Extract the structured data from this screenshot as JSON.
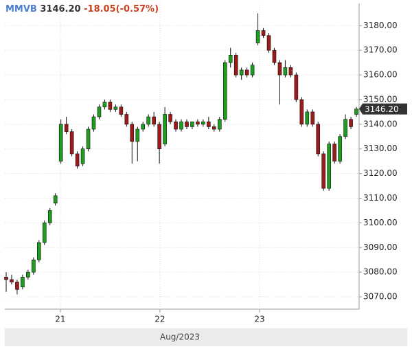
{
  "chart_data": {
    "type": "candlestick",
    "symbol": "MMVB",
    "price": "3146.20",
    "change": "-18.05(-0.57%)",
    "xlabel": "Aug/2023",
    "up_color": "#1e9e1e",
    "down_color": "#9e1a1a",
    "x": [
      0,
      1,
      2,
      3,
      4,
      5,
      6,
      7,
      8,
      9,
      10,
      11,
      12,
      13,
      14,
      15,
      16,
      17,
      18,
      19,
      20,
      21,
      22,
      23,
      24,
      25,
      26,
      27,
      28,
      29,
      30,
      31,
      32,
      33,
      34,
      35,
      36,
      37,
      38,
      39,
      40,
      41,
      42,
      43,
      44,
      45,
      46,
      47,
      48,
      49,
      50,
      51,
      52,
      53,
      54,
      55,
      56,
      57,
      58,
      59,
      60,
      61,
      62,
      63,
      64
    ],
    "open": [
      3078,
      3077,
      3076,
      3074,
      3078,
      3080,
      3085,
      3092,
      3100,
      3108,
      3125,
      3140,
      3137,
      3128,
      3124,
      3130,
      3138,
      3143,
      3147,
      3149,
      3146,
      3147,
      3144,
      3140,
      3133,
      3138,
      3140,
      3143,
      3140,
      3132,
      3144,
      3141,
      3138,
      3141,
      3139,
      3141,
      3140,
      3141,
      3139,
      3138,
      3142,
      3165,
      3168,
      3160,
      3162,
      3160,
      3173,
      3178,
      3176,
      3170,
      3165,
      3160,
      3163,
      3160,
      3150,
      3140,
      3145,
      3140,
      3128,
      3114,
      3132,
      3125,
      3135,
      3142,
      3144
    ],
    "high": [
      3080,
      3079,
      3077,
      3079,
      3081,
      3086,
      3093,
      3101,
      3106,
      3112,
      3142,
      3143,
      3138,
      3129,
      3131,
      3139,
      3144,
      3148,
      3150,
      3150,
      3148,
      3148,
      3145,
      3141,
      3139,
      3141,
      3144,
      3145,
      3141,
      3147,
      3145,
      3142,
      3142,
      3142,
      3141,
      3142,
      3142,
      3143,
      3140,
      3143,
      3166,
      3171,
      3169,
      3163,
      3163,
      3165,
      3185,
      3179,
      3177,
      3171,
      3166,
      3166,
      3164,
      3161,
      3151,
      3146,
      3146,
      3141,
      3129,
      3133,
      3133,
      3136,
      3144,
      3143,
      3147
    ],
    "low": [
      3072,
      3075,
      3071,
      3073,
      3077,
      3079,
      3084,
      3091,
      3099,
      3107,
      3124,
      3136,
      3127,
      3122,
      3123,
      3129,
      3137,
      3142,
      3146,
      3145,
      3145,
      3143,
      3139,
      3124,
      3125,
      3137,
      3139,
      3139,
      3124,
      3131,
      3140,
      3137,
      3137,
      3138,
      3138,
      3139,
      3139,
      3138,
      3137,
      3137,
      3141,
      3163,
      3159,
      3158,
      3159,
      3159,
      3172,
      3175,
      3169,
      3164,
      3148,
      3159,
      3159,
      3149,
      3139,
      3139,
      3139,
      3127,
      3113,
      3113,
      3124,
      3124,
      3134,
      3138,
      3143
    ],
    "close": [
      3077,
      3076,
      3073,
      3078,
      3080,
      3085,
      3092,
      3100,
      3105,
      3111,
      3140,
      3137,
      3128,
      3123,
      3130,
      3138,
      3143,
      3147,
      3149,
      3146,
      3147,
      3144,
      3140,
      3133,
      3138,
      3140,
      3143,
      3140,
      3130,
      3144,
      3141,
      3138,
      3141,
      3139,
      3141,
      3140,
      3141,
      3139,
      3138,
      3142,
      3165,
      3168,
      3160,
      3162,
      3160,
      3164,
      3178,
      3176,
      3170,
      3165,
      3160,
      3163,
      3160,
      3150,
      3140,
      3145,
      3140,
      3128,
      3114,
      3132,
      3125,
      3135,
      3142,
      3139,
      3146.2
    ],
    "xlim": [
      -0.25,
      64.5
    ],
    "xticks": [
      {
        "value": 9.9,
        "label": "21"
      },
      {
        "value": 28.1,
        "label": "22"
      },
      {
        "value": 46.3,
        "label": "23"
      }
    ],
    "ylim": [
      3065,
      3189
    ],
    "yticks": [
      {
        "value": 3070,
        "label": "3070.00"
      },
      {
        "value": 3080,
        "label": "3080.00"
      },
      {
        "value": 3090,
        "label": "3090.00"
      },
      {
        "value": 3100,
        "label": "3100.00"
      },
      {
        "value": 3110,
        "label": "3110.00"
      },
      {
        "value": 3120,
        "label": "3120.00"
      },
      {
        "value": 3130,
        "label": "3130.00"
      },
      {
        "value": 3140,
        "label": "3140.00"
      },
      {
        "value": 3150,
        "label": "3150.00"
      },
      {
        "value": 3160,
        "label": "3160.00"
      },
      {
        "value": 3170,
        "label": "3170.00"
      },
      {
        "value": 3180,
        "label": "3180.00"
      }
    ],
    "grid": true
  }
}
